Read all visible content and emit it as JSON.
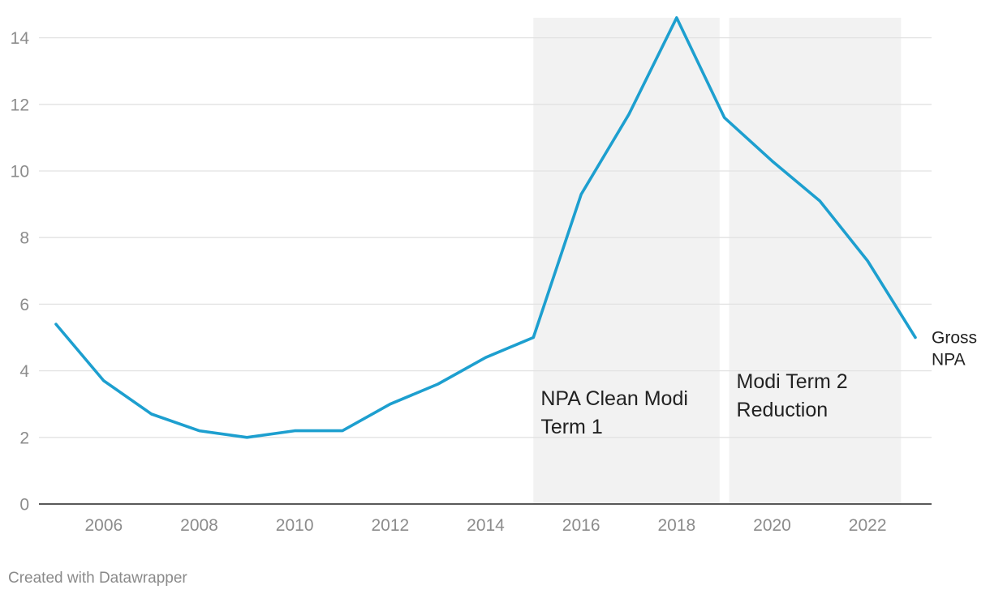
{
  "chart_data": {
    "type": "line",
    "title": "",
    "xlabel": "",
    "ylabel": "",
    "xlim": [
      2005,
      2023
    ],
    "ylim": [
      0,
      14.6
    ],
    "x_ticks": [
      2006,
      2008,
      2010,
      2012,
      2014,
      2016,
      2018,
      2020,
      2022
    ],
    "y_ticks": [
      0,
      2,
      4,
      6,
      8,
      10,
      12,
      14
    ],
    "grid": true,
    "series": [
      {
        "name": "Gross NPA",
        "label_lines": [
          "Gross",
          "NPA"
        ],
        "color": "#1d9fcf",
        "x": [
          2005,
          2006,
          2007,
          2008,
          2009,
          2010,
          2011,
          2012,
          2013,
          2014,
          2015,
          2016,
          2017,
          2018,
          2019,
          2020,
          2021,
          2022,
          2023
        ],
        "y": [
          5.4,
          3.7,
          2.7,
          2.2,
          2.0,
          2.2,
          2.2,
          3.0,
          3.6,
          4.4,
          5.0,
          9.3,
          11.7,
          14.6,
          11.6,
          10.3,
          9.1,
          7.3,
          5.0
        ]
      }
    ],
    "annotations": [
      {
        "type": "band",
        "x_range": [
          2015,
          2018.9
        ],
        "label_lines": [
          "NPA Clean Modi",
          "Term 1"
        ],
        "color": "#f2f2f2"
      },
      {
        "type": "band",
        "x_range": [
          2019.1,
          2022.7
        ],
        "label_lines": [
          "Modi Term 2",
          "Reduction"
        ],
        "color": "#f2f2f2"
      }
    ]
  },
  "footer": {
    "credit": "Created with Datawrapper"
  }
}
